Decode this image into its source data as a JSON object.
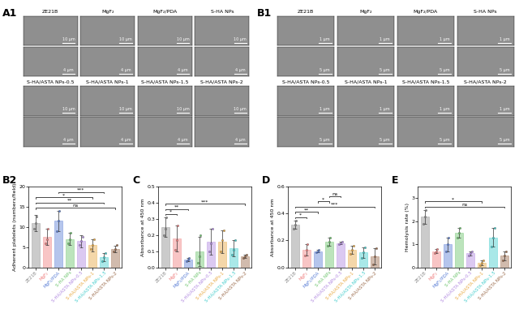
{
  "image_panels": [
    {
      "panel_label": "A1",
      "groups": [
        {
          "titles": [
            "ZE21B",
            "MgF₂",
            "MgF₂/PDA",
            "S-HA NPs"
          ],
          "rows": [
            [
              "10 μm",
              "10 μm",
              "10 μm",
              "10 μm"
            ],
            [
              "4 μm",
              "4 μm",
              "4 μm",
              "4 μm"
            ]
          ]
        },
        {
          "titles": [
            "S-HA/ASTA NPs-0.5",
            "S-HA/ASTA NPs-1",
            "S-HA/ASTA NPs-1.5",
            "S-HA/ASTA NPs-2"
          ],
          "rows": [
            [
              "10 μm",
              "10 μm",
              "10 μm",
              "10 μm"
            ],
            [
              "4 μm",
              "4 μm",
              "4 μm",
              "4 μm"
            ]
          ]
        }
      ]
    },
    {
      "panel_label": "B1",
      "groups": [
        {
          "titles": [
            "ZE21B",
            "MgF₂",
            "MgF₂/PDA",
            "S-HA NPs"
          ],
          "rows": [
            [
              "1 μm",
              "1 μm",
              "1 μm",
              "1 μm"
            ],
            [
              "5 μm",
              "5 μm",
              "5 μm",
              "5 μm"
            ]
          ]
        },
        {
          "titles": [
            "S-HA/ASTA NPs-0.5",
            "S-HA/ASTA NPs-1",
            "S-HA/ASTA NPs-1.5",
            "S-HA/ASTA NPs-2"
          ],
          "rows": [
            [
              "1 μm",
              "1 μm",
              "1 μm",
              "1 μm"
            ],
            [
              "5 μm",
              "5 μm",
              "5 μm",
              "5 μm"
            ]
          ]
        }
      ]
    }
  ],
  "chart_data": [
    {
      "type": "bar",
      "panel_label": "B2",
      "ylabel": "Adherent platelets (numbers/field)",
      "categories": [
        "ZE21B",
        "MgF₂",
        "MgF₂/PDA",
        "S-HA NPs",
        "S-HA/ASTA NPs-0.5",
        "S-HA/ASTA NPs-1",
        "S-HA/ASTA NPs-1.5",
        "S-HA/ASTA NPs-2"
      ],
      "values": [
        11,
        7.5,
        11.5,
        7,
        6.5,
        5.5,
        2.5,
        4.5
      ],
      "errors": [
        2,
        2,
        2.5,
        1.5,
        1.5,
        1.5,
        1,
        0.8
      ],
      "points": [
        [
          9.5,
          11,
          12.5
        ],
        [
          6,
          7,
          9.5
        ],
        [
          9,
          11.5,
          14
        ],
        [
          6,
          7,
          8.5
        ],
        [
          5.5,
          6.5,
          7.5
        ],
        [
          4.5,
          5.5,
          7
        ],
        [
          1.5,
          2.5,
          3.5
        ],
        [
          4,
          4.5,
          5.5
        ]
      ],
      "colors": [
        "#8c8c8c",
        "#f08080",
        "#5b7fd6",
        "#6cc46c",
        "#b088e0",
        "#e8a840",
        "#40cccc",
        "#9a6a4a"
      ],
      "ylim": [
        0,
        20
      ],
      "yticks": [
        0,
        5,
        10,
        15,
        20
      ],
      "significance": [
        {
          "from": 0,
          "to": 7,
          "label": "ns"
        },
        {
          "from": 0,
          "to": 6,
          "label": "**"
        },
        {
          "from": 0,
          "to": 5,
          "label": "*"
        },
        {
          "from": 2,
          "to": 6,
          "label": "***"
        }
      ]
    },
    {
      "type": "bar",
      "panel_label": "C",
      "ylabel": "Absorbance at 450 nm",
      "categories": [
        "ZE21B",
        "MgF₂",
        "MgF₂/PDA",
        "S-HA NPs",
        "S-HA/ASTA NPs-0.5",
        "S-HA/ASTA NPs-1",
        "S-HA/ASTA NPs-1.5",
        "S-HA/ASTA NPs-2"
      ],
      "values": [
        0.25,
        0.18,
        0.05,
        0.1,
        0.16,
        0.16,
        0.12,
        0.07
      ],
      "errors": [
        0.06,
        0.08,
        0.01,
        0.09,
        0.08,
        0.07,
        0.05,
        0.01
      ],
      "points": [
        [
          0.2,
          0.24,
          0.31
        ],
        [
          0.11,
          0.17,
          0.26
        ],
        [
          0.04,
          0.05,
          0.06
        ],
        [
          0.03,
          0.07,
          0.2
        ],
        [
          0.1,
          0.15,
          0.24
        ],
        [
          0.1,
          0.17,
          0.23
        ],
        [
          0.08,
          0.11,
          0.17
        ],
        [
          0.06,
          0.07,
          0.08
        ]
      ],
      "colors": [
        "#8c8c8c",
        "#f08080",
        "#5b7fd6",
        "#6cc46c",
        "#b088e0",
        "#e8a840",
        "#40cccc",
        "#9a6a4a"
      ],
      "ylim": [
        0,
        0.5
      ],
      "yticks": [
        0.0,
        0.1,
        0.2,
        0.3,
        0.4,
        0.5
      ],
      "significance": [
        {
          "from": 0,
          "to": 1,
          "label": "*"
        },
        {
          "from": 0,
          "to": 2,
          "label": "**"
        },
        {
          "from": 0,
          "to": 7,
          "label": "***"
        }
      ]
    },
    {
      "type": "bar",
      "panel_label": "D",
      "ylabel": "Absorbance at 450 nm",
      "categories": [
        "ZE21B",
        "MgF₂",
        "MgF₂/PDA",
        "S-HA NPs",
        "S-HA/ASTA NPs-0.5",
        "S-HA/ASTA NPs-1",
        "S-HA/ASTA NPs-1.5",
        "S-HA/ASTA NPs-2"
      ],
      "values": [
        0.32,
        0.13,
        0.12,
        0.19,
        0.18,
        0.13,
        0.11,
        0.08
      ],
      "errors": [
        0.03,
        0.04,
        0.01,
        0.03,
        0.01,
        0.03,
        0.04,
        0.06
      ],
      "points": [
        [
          0.29,
          0.32,
          0.35
        ],
        [
          0.09,
          0.13,
          0.17
        ],
        [
          0.11,
          0.12,
          0.13
        ],
        [
          0.16,
          0.19,
          0.22
        ],
        [
          0.17,
          0.18,
          0.19
        ],
        [
          0.1,
          0.13,
          0.16
        ],
        [
          0.07,
          0.11,
          0.15
        ],
        [
          0.02,
          0.08,
          0.14
        ]
      ],
      "colors": [
        "#8c8c8c",
        "#f08080",
        "#5b7fd6",
        "#6cc46c",
        "#b088e0",
        "#e8a840",
        "#40cccc",
        "#9a6a4a"
      ],
      "ylim": [
        0,
        0.6
      ],
      "yticks": [
        0.0,
        0.2,
        0.4,
        0.6
      ],
      "significance": [
        {
          "from": 0,
          "to": 1,
          "label": "*"
        },
        {
          "from": 0,
          "to": 2,
          "label": "**"
        },
        {
          "from": 0,
          "to": 7,
          "label": "***"
        },
        {
          "from": 2,
          "to": 3,
          "label": "*"
        },
        {
          "from": 3,
          "to": 4,
          "label": "ns"
        }
      ]
    },
    {
      "type": "bar",
      "panel_label": "E",
      "ylabel": "Hemolysis rate (%)",
      "categories": [
        "ZE21B",
        "MgF₂",
        "MgF₂/PDA",
        "S-HA NPs",
        "S-HA/ASTA NPs-0.5",
        "S-HA/ASTA NPs-1",
        "S-HA/ASTA NPs-1.5",
        "S-HA/ASTA NPs-2"
      ],
      "values": [
        2.2,
        0.7,
        1.0,
        1.5,
        0.6,
        0.2,
        1.3,
        0.5
      ],
      "errors": [
        0.3,
        0.1,
        0.3,
        0.2,
        0.1,
        0.1,
        0.4,
        0.2
      ],
      "points": [
        [
          1.9,
          2.2,
          2.5
        ],
        [
          0.6,
          0.7,
          0.8
        ],
        [
          0.7,
          1.0,
          1.3
        ],
        [
          1.3,
          1.5,
          1.7
        ],
        [
          0.5,
          0.6,
          0.7
        ],
        [
          0.1,
          0.2,
          0.3
        ],
        [
          0.9,
          1.3,
          1.7
        ],
        [
          0.3,
          0.5,
          0.7
        ]
      ],
      "colors": [
        "#8c8c8c",
        "#f08080",
        "#5b7fd6",
        "#6cc46c",
        "#b088e0",
        "#e8a840",
        "#40cccc",
        "#9a6a4a"
      ],
      "ylim": [
        0,
        3.5
      ],
      "yticks": [
        0,
        1,
        2,
        3
      ],
      "significance": [
        {
          "from": 0,
          "to": 7,
          "label": "ns"
        },
        {
          "from": 0,
          "to": 5,
          "label": "*"
        }
      ]
    }
  ]
}
